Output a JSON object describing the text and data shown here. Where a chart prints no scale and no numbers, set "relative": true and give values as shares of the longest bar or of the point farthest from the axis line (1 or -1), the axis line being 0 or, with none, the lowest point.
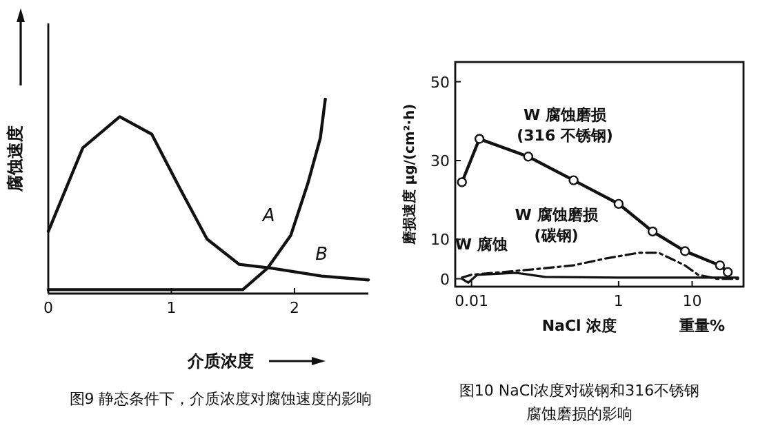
{
  "chart_data": [
    {
      "type": "line",
      "relative": true,
      "title": "图9 静态条件下，介质浓度对腐蚀速度的影响",
      "xlabel": "介质浓度",
      "ylabel": "腐蚀速度",
      "xlim": [
        0,
        2.6
      ],
      "xticks": [
        0,
        1,
        2
      ],
      "legend": false,
      "grid": false,
      "marker": "none",
      "tick_labels": "x",
      "series": [
        {
          "name": "A",
          "color": "#111111",
          "x": [
            0,
            1.58,
            1.78,
            1.97,
            2.11,
            2.21,
            2.25
          ],
          "values": [
            0.02,
            0.02,
            0.13,
            0.3,
            0.57,
            0.8,
            1
          ]
        },
        {
          "name": "B",
          "color": "#111111",
          "x": [
            0,
            0.28,
            0.58,
            0.84,
            1.07,
            1.29,
            1.55,
            1.82,
            2.22,
            2.6
          ],
          "values": [
            0.32,
            0.75,
            0.91,
            0.82,
            0.54,
            0.28,
            0.15,
            0.13,
            0.09,
            0.07
          ]
        }
      ]
    },
    {
      "type": "line",
      "log": "x",
      "title": "图10 NaCl浓度对碳钢和316不锈钢腐蚀磨损的影响",
      "xlabel": "NaCl 浓度",
      "ylabel": "磨损速度 μg/(cm²·h)",
      "annotations": [
        "重量%"
      ],
      "xlim": [
        0.006,
        50
      ],
      "ylim": [
        -2,
        55
      ],
      "xticks": [
        0.01,
        1,
        10
      ],
      "yticks": [
        0,
        10,
        30,
        50
      ],
      "legend": false,
      "grid": false,
      "series": [
        {
          "name": "W 腐蚀磨损 (316 不锈钢)",
          "color": "#111111",
          "marker": "circle",
          "line_style": "solid",
          "x": [
            0.0074,
            0.0128,
            0.059,
            0.244,
            1,
            2.9,
            8,
            23.9,
            30.5
          ],
          "values": [
            24.5,
            35.5,
            31,
            25,
            19,
            12,
            7,
            3.4,
            1.7
          ]
        },
        {
          "name": "W 腐蚀磨损 (碳钢)",
          "color": "#111111",
          "marker": "none",
          "line_style": "dashed",
          "x": [
            0.0074,
            0.01,
            0.07,
            0.24,
            0.69,
            1.9,
            3.5,
            8,
            12,
            22,
            42
          ],
          "values": [
            0.3,
            1,
            2.4,
            3.4,
            5.2,
            6.6,
            6.6,
            3.4,
            1,
            0,
            0
          ]
        },
        {
          "name": "W 腐蚀",
          "color": "#111111",
          "marker": "none",
          "line_style": "solid",
          "x": [
            0.0074,
            0.009,
            0.012,
            0.04,
            0.1,
            1,
            10,
            42
          ],
          "values": [
            0,
            -1,
            1,
            1.5,
            0.5,
            0.3,
            0.3,
            0.3
          ]
        }
      ]
    }
  ]
}
